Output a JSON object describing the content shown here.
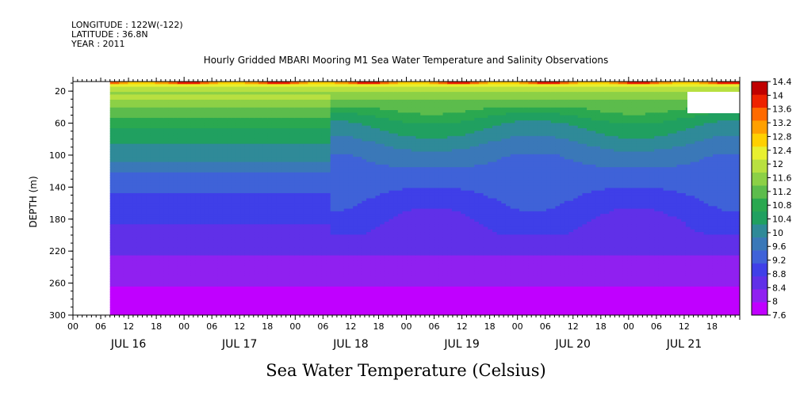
{
  "header": {
    "longitude": "LONGITUDE : 122W(-122)",
    "latitude": "LATITUDE : 36.8N",
    "year": "YEAR : 2011"
  },
  "chart_data": {
    "type": "heatmap",
    "title": "Hourly Gridded MBARI Mooring M1 Sea Water Temperature and Salinity Observations",
    "xlabel": "Sea Water Temperature (Celsius)",
    "ylabel": "DEPTH (m)",
    "ylim": [
      300,
      8
    ],
    "y_ticks": [
      "20",
      "60",
      "100",
      "140",
      "180",
      "220",
      "260",
      "300"
    ],
    "y_tick_values": [
      20,
      60,
      100,
      140,
      180,
      220,
      260,
      300
    ],
    "x_hour_ticks": [
      "00",
      "06",
      "12",
      "18",
      "00",
      "06",
      "12",
      "18",
      "00",
      "06",
      "12",
      "18",
      "00",
      "06",
      "12",
      "18",
      "00",
      "06",
      "12",
      "18",
      "00",
      "06",
      "12",
      "18"
    ],
    "x_day_labels": [
      "JUL 16",
      "JUL 17",
      "JUL 18",
      "JUL 19",
      "JUL 20",
      "JUL 21"
    ],
    "x_hours_range": [
      0,
      144
    ],
    "data_start_hour": 8,
    "colorbar_labels": [
      "14.4",
      "14",
      "13.6",
      "13.2",
      "12.8",
      "12.4",
      "12",
      "11.6",
      "11.2",
      "10.8",
      "10.4",
      "10",
      "9.6",
      "9.2",
      "8.8",
      "8.4",
      "8",
      "7.6"
    ],
    "colorbar_min": 7.6,
    "colorbar_max": 14.4,
    "colorbar_colors": [
      "#c000ff",
      "#9020f0",
      "#6030e8",
      "#3f3fe8",
      "#3f62d8",
      "#3a78b8",
      "#2f8a98",
      "#20a060",
      "#2aa850",
      "#5cbc4c",
      "#8cd046",
      "#b8e040",
      "#e8f030",
      "#ffd000",
      "#ffa000",
      "#ff6a00",
      "#ee2200",
      "#c00000"
    ],
    "temperature_profile_by_depth": [
      {
        "depth": 8,
        "temp": 13.6
      },
      {
        "depth": 15,
        "temp": 12.0
      },
      {
        "depth": 30,
        "temp": 11.4
      },
      {
        "depth": 60,
        "temp": 10.4
      },
      {
        "depth": 100,
        "temp": 9.6
      },
      {
        "depth": 140,
        "temp": 9.2
      },
      {
        "depth": 180,
        "temp": 8.8
      },
      {
        "depth": 220,
        "temp": 8.4
      },
      {
        "depth": 260,
        "temp": 8.0
      },
      {
        "depth": 300,
        "temp": 7.7
      }
    ]
  }
}
